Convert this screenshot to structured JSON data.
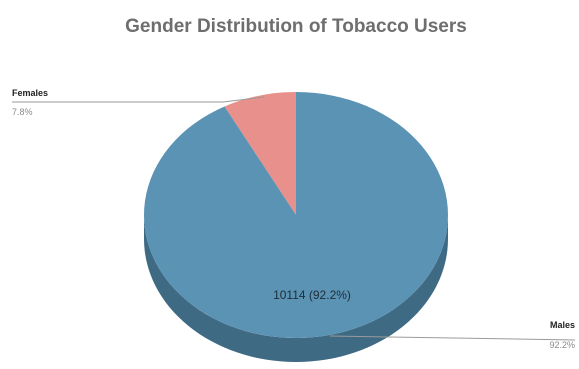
{
  "chart_data": {
    "type": "pie",
    "title": "Gender Distribution of Tobacco Users",
    "slices": [
      {
        "label": "Females",
        "value": 855,
        "percent_label": "7.8%",
        "color": "#e8908b",
        "side_color": "#c9736e"
      },
      {
        "label": "Males",
        "value": 10114,
        "percent_label": "92.2%",
        "color": "#5a93b3",
        "side_color": "#3f6a84",
        "data_label": "10114 (92.2%)"
      }
    ],
    "style": "3d",
    "legend": "none",
    "grid": false
  }
}
